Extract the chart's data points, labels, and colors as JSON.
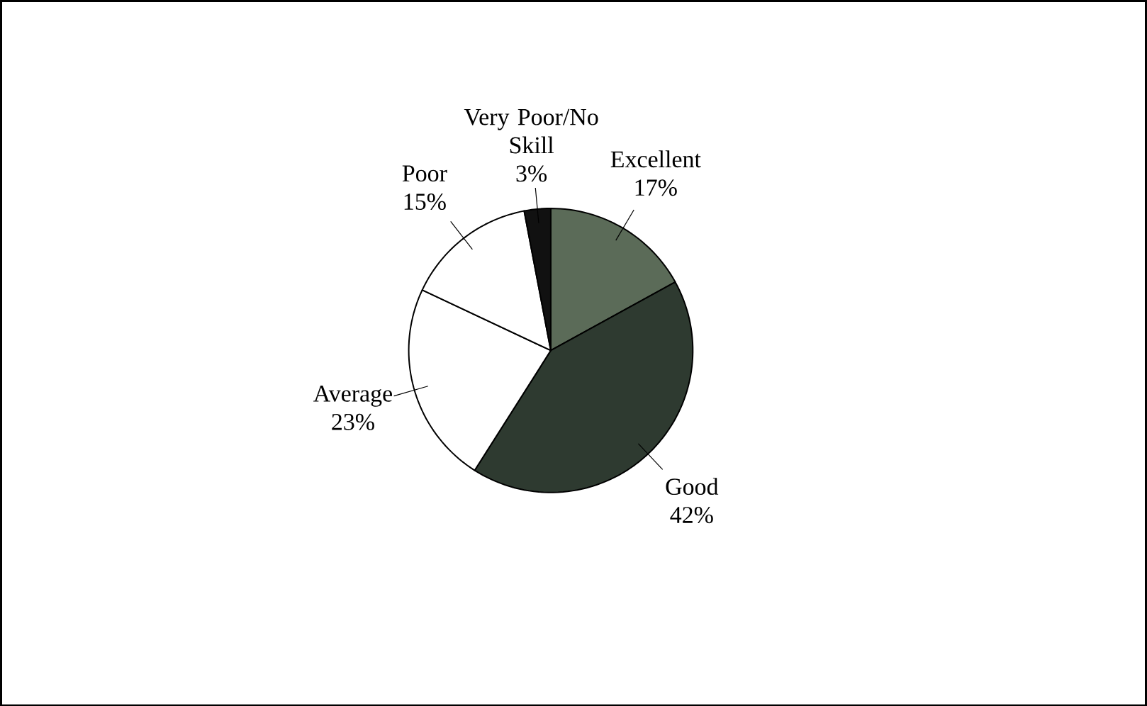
{
  "chart_data": {
    "type": "pie",
    "categories": [
      "Excellent",
      "Good",
      "Average",
      "Poor",
      "Very Poor/No Skill"
    ],
    "values": [
      17,
      42,
      23,
      15,
      3
    ],
    "value_labels": [
      "17%",
      "42%",
      "23%",
      "15%",
      "3%"
    ],
    "colors": [
      "#5b6b58",
      "#2e3a30",
      "#ffffff",
      "#ffffff",
      "#111111"
    ]
  }
}
